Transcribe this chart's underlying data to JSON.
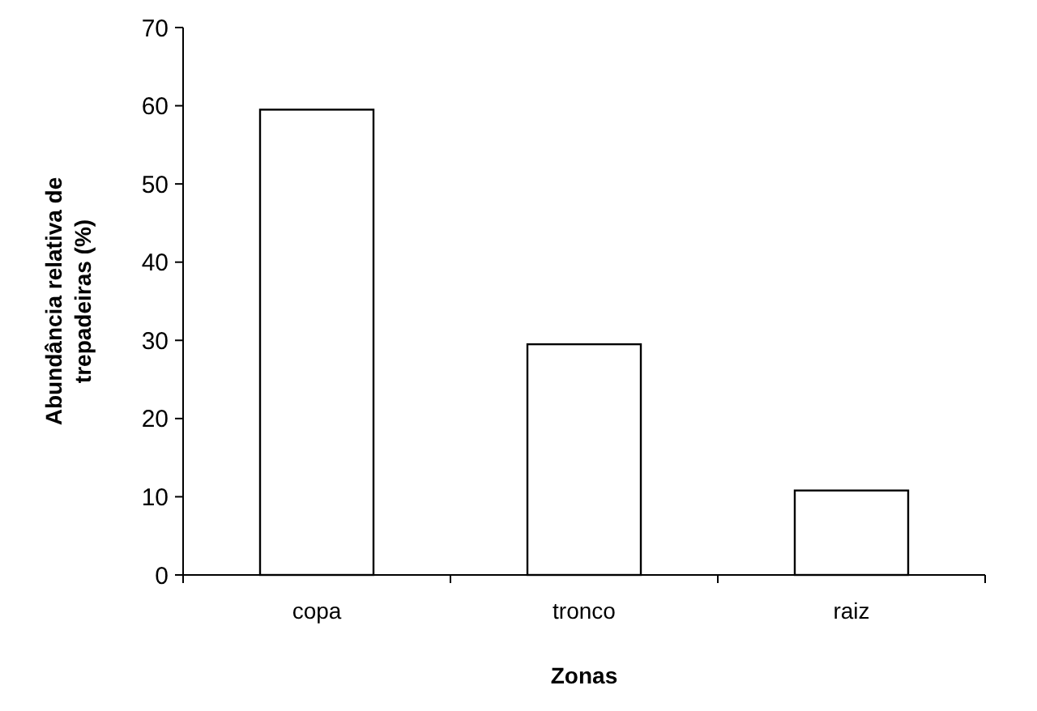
{
  "chart_data": {
    "type": "bar",
    "xlabel": "Zonas",
    "ylabel": "Abundância relativa de trepadeiras (%)",
    "categories": [
      "copa",
      "tronco",
      "raiz"
    ],
    "values": [
      59.5,
      29.5,
      10.8
    ],
    "color": "#ffffff",
    "ylim": [
      0,
      70
    ],
    "yticks": [
      0,
      10,
      20,
      30,
      40,
      50,
      60,
      70
    ]
  }
}
